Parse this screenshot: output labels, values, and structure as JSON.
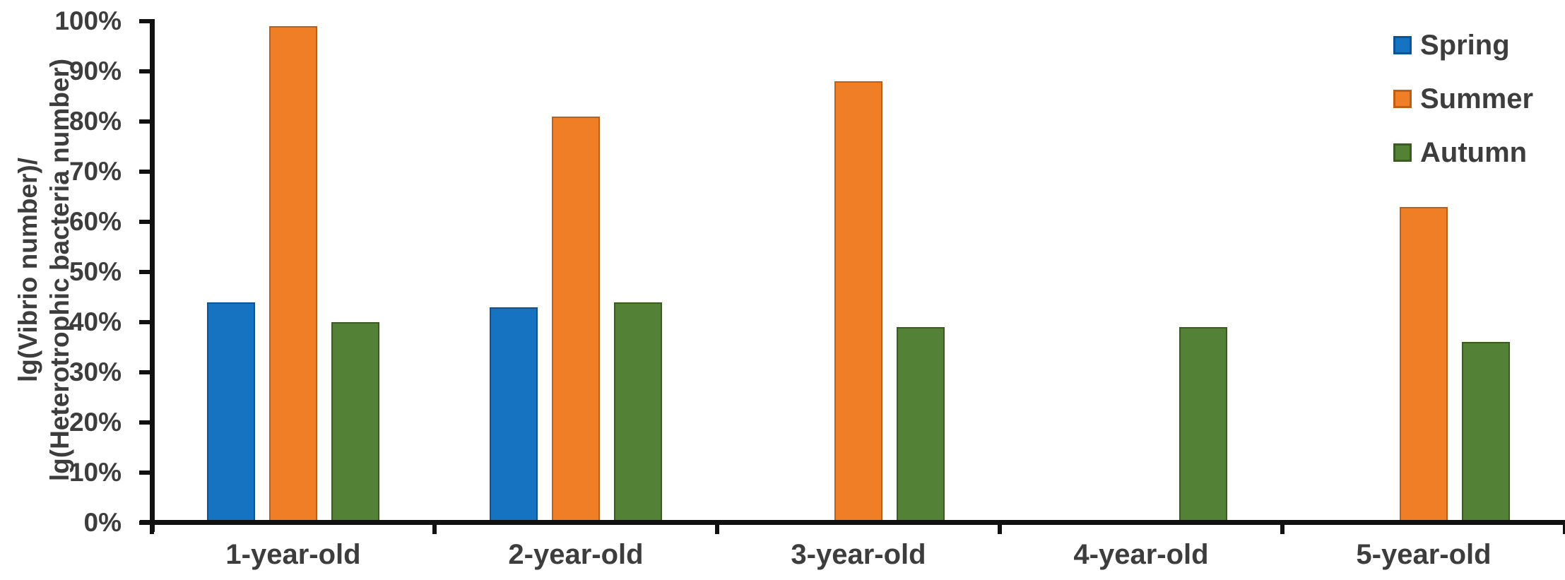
{
  "chart_data": {
    "type": "bar",
    "title": "",
    "ylabel_line1": "lg(Vibrio number)/",
    "ylabel_line2": "lg(Heterotrophic bacteria number)",
    "xlabel": "",
    "categories": [
      "1-year-old",
      "2-year-old",
      "3-year-old",
      "4-year-old",
      "5-year-old"
    ],
    "series": [
      {
        "name": "Spring",
        "color": "#1673c2",
        "border_color": "#0c5496",
        "values": [
          44,
          43,
          null,
          null,
          null
        ]
      },
      {
        "name": "Summer",
        "color": "#f07e27",
        "border_color": "#c05f14",
        "values": [
          99,
          81,
          88,
          null,
          63
        ]
      },
      {
        "name": "Autumn",
        "color": "#538135",
        "border_color": "#3a5b22",
        "values": [
          40,
          44,
          39,
          39,
          36
        ]
      }
    ],
    "y_axis": {
      "min": 0,
      "max": 100,
      "step": 10,
      "tick_labels": [
        "0%",
        "10%",
        "20%",
        "30%",
        "40%",
        "50%",
        "60%",
        "70%",
        "80%",
        "90%",
        "100%"
      ]
    },
    "legend_position": "top-right",
    "grid": false
  }
}
